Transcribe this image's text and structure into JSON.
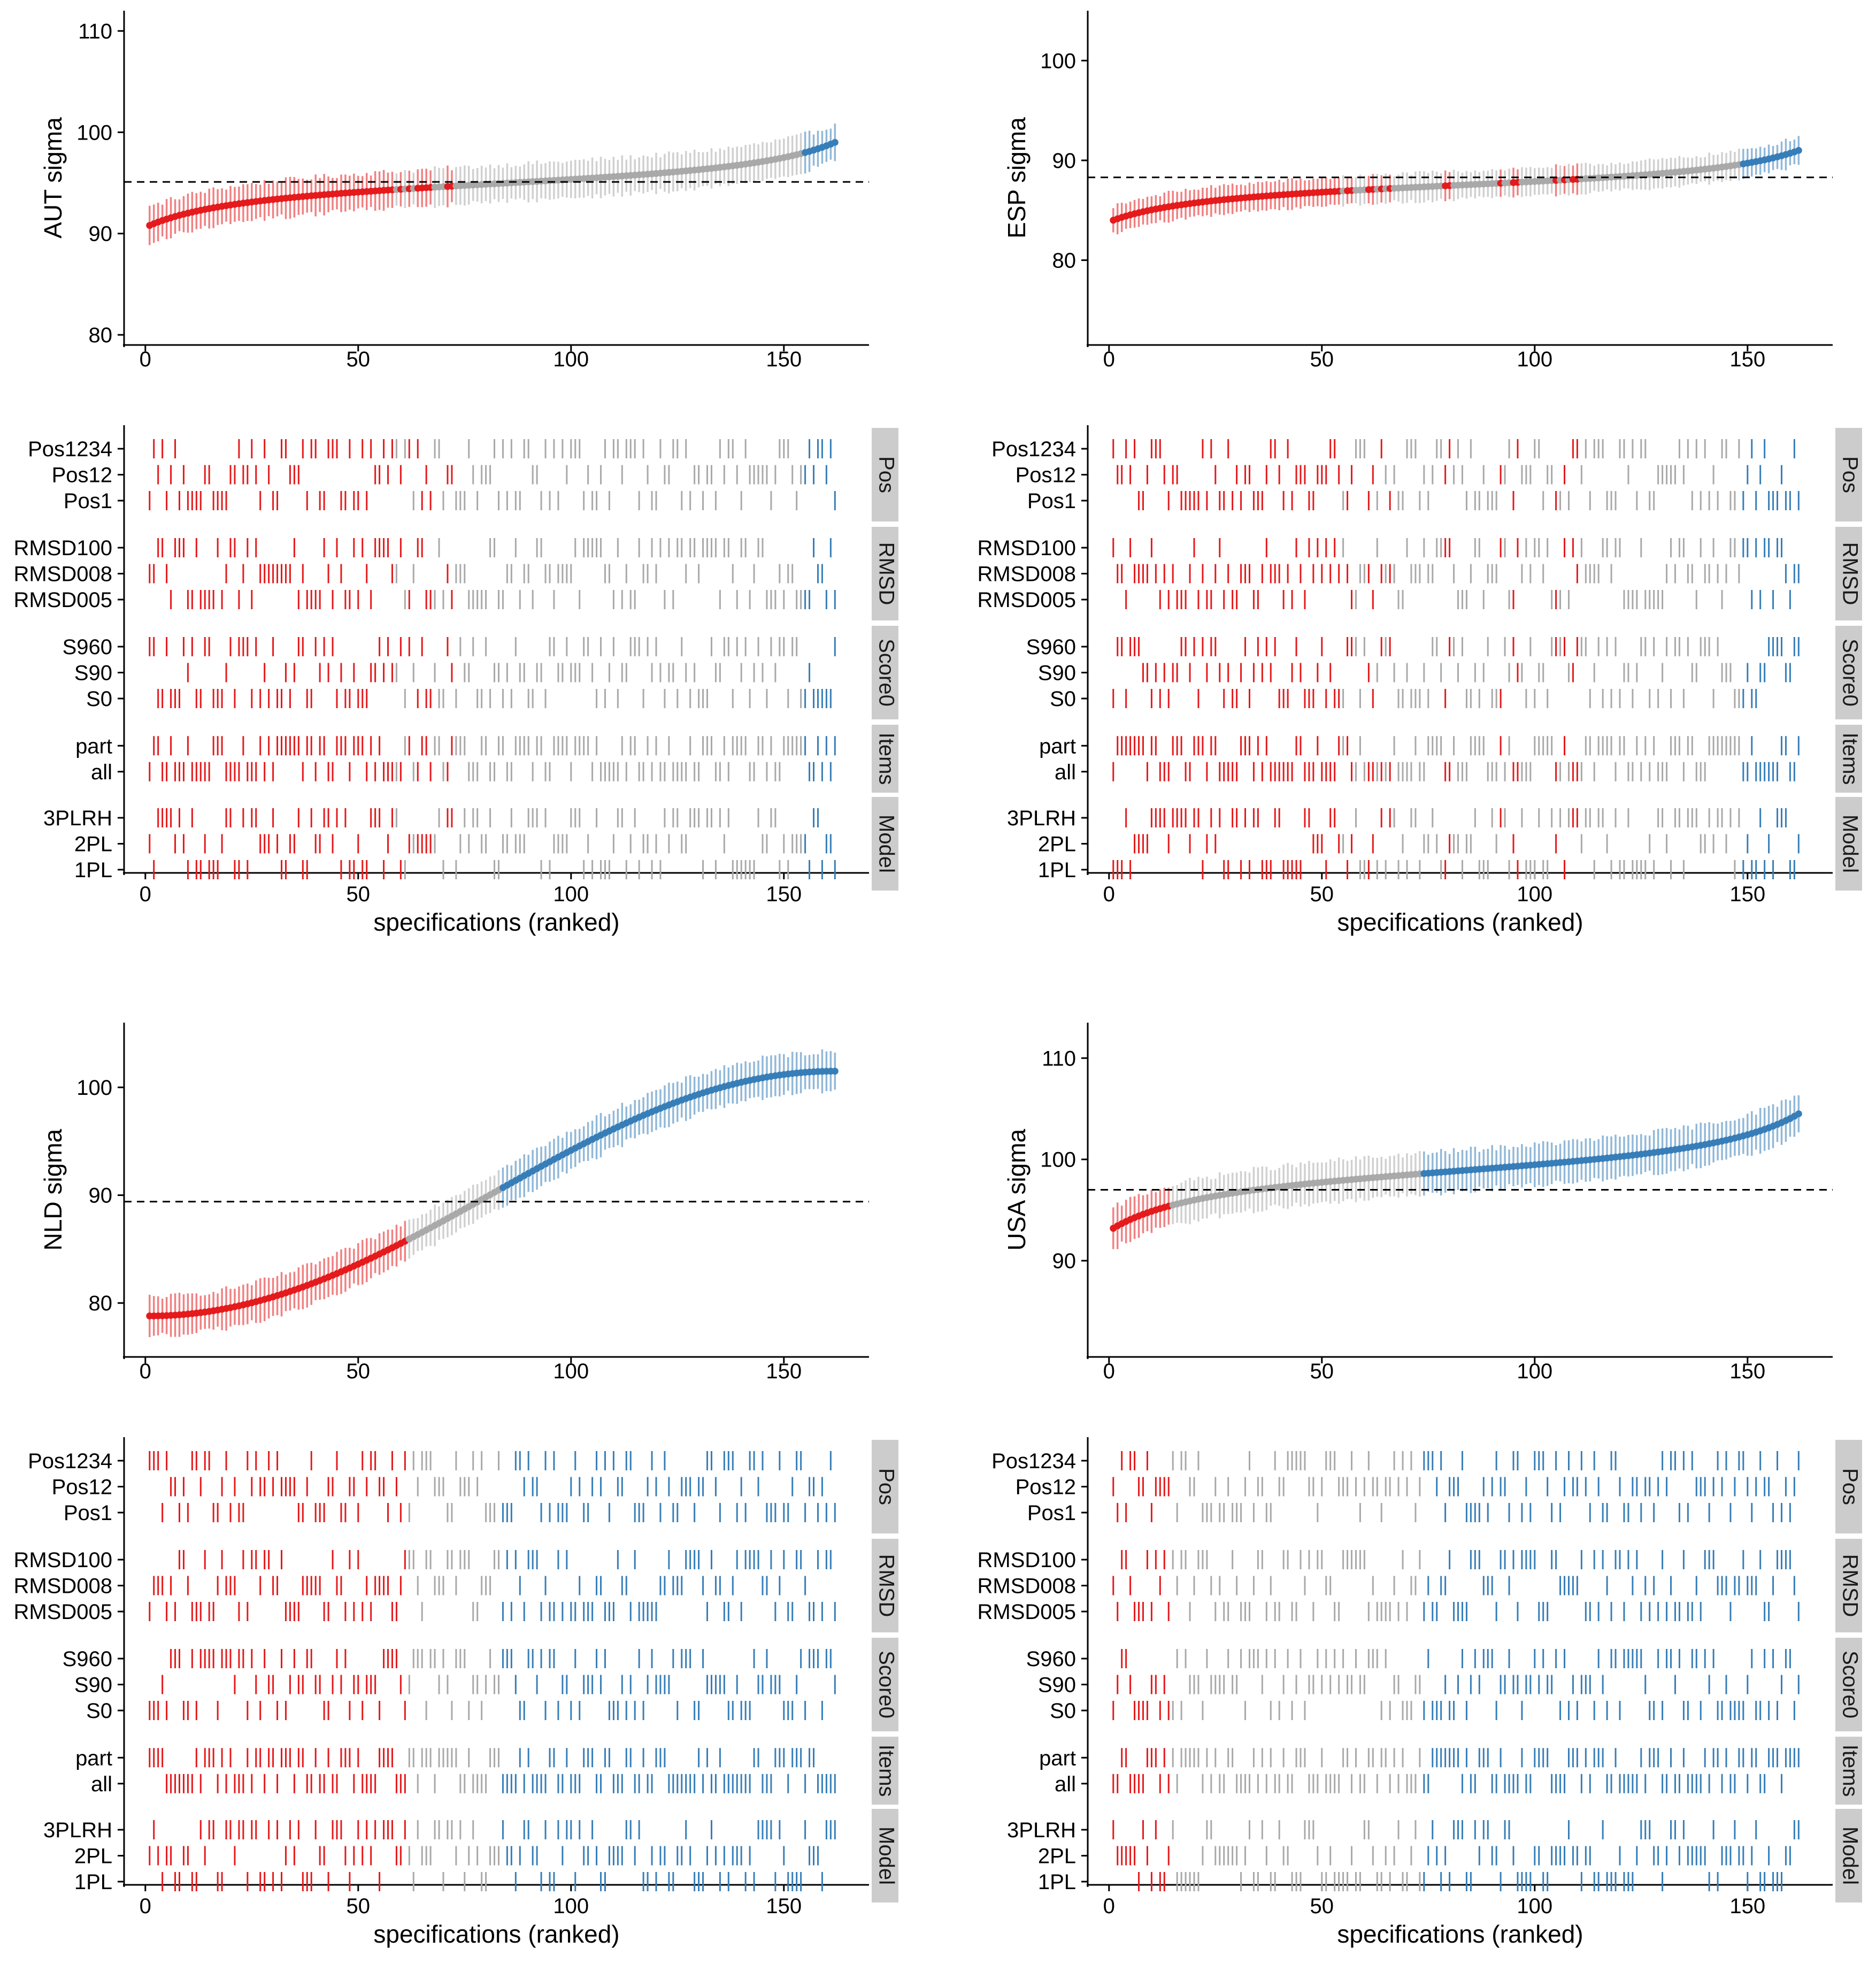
{
  "figure": {
    "colors": {
      "below": "#e41a1c",
      "neutral": "#a9a9a9",
      "above": "#377eb8"
    }
  },
  "chart_data": [
    {
      "type": "scatter",
      "country": "AUT",
      "ylabel": "AUT sigma",
      "xlabel": "specifications (ranked)",
      "n": 162,
      "xlim": [
        -5,
        170
      ],
      "xticks": [
        "0",
        "50",
        "100",
        "150"
      ],
      "ylim": [
        79,
        112
      ],
      "yticks": [
        "80",
        "90",
        "100",
        "110"
      ],
      "reference_line": 95.1,
      "est_start": 90.8,
      "est_end": 99.0,
      "ci_halfwidth": 1.8,
      "last_red": 72,
      "first_blue": 155,
      "scatter_lo": 59,
      "scatter_hi": 72,
      "factors": [
        {
          "name": "Pos",
          "levels": [
            "Pos1234",
            "Pos12",
            "Pos1"
          ]
        },
        {
          "name": "RMSD",
          "levels": [
            "RMSD100",
            "RMSD008",
            "RMSD005"
          ]
        },
        {
          "name": "Score0",
          "levels": [
            "S960",
            "S90",
            "S0"
          ]
        },
        {
          "name": "Items",
          "levels": [
            "part",
            "all"
          ]
        },
        {
          "name": "Model",
          "levels": [
            "3PLRH",
            "2PL",
            "1PL"
          ]
        }
      ]
    },
    {
      "type": "scatter",
      "country": "ESP",
      "ylabel": "ESP sigma",
      "xlabel": "specifications (ranked)",
      "n": 162,
      "xlim": [
        -5,
        170
      ],
      "xticks": [
        "0",
        "50",
        "100",
        "150"
      ],
      "ylim": [
        71.5,
        105
      ],
      "yticks": [
        "80",
        "90",
        "100"
      ],
      "reference_line": 88.3,
      "est_start": 84.0,
      "est_end": 91.0,
      "ci_halfwidth": 1.4,
      "last_red": 110,
      "first_blue": 149,
      "scatter_lo": 55,
      "scatter_hi": 110,
      "factors": [
        {
          "name": "Pos",
          "levels": [
            "Pos1234",
            "Pos12",
            "Pos1"
          ]
        },
        {
          "name": "RMSD",
          "levels": [
            "RMSD100",
            "RMSD008",
            "RMSD005"
          ]
        },
        {
          "name": "Score0",
          "levels": [
            "S960",
            "S90",
            "S0"
          ]
        },
        {
          "name": "Items",
          "levels": [
            "part",
            "all"
          ]
        },
        {
          "name": "Model",
          "levels": [
            "3PLRH",
            "2PL",
            "1PL"
          ]
        }
      ]
    },
    {
      "type": "scatter",
      "country": "NLD",
      "ylabel": "NLD sigma",
      "xlabel": "specifications (ranked)",
      "n": 162,
      "xlim": [
        -5,
        170
      ],
      "xticks": [
        "0",
        "50",
        "100",
        "150"
      ],
      "ylim": [
        75,
        106
      ],
      "yticks": [
        "80",
        "90",
        "100"
      ],
      "reference_line": 89.4,
      "est_start": 78.8,
      "est_end": 101.5,
      "ci_halfwidth": 1.8,
      "last_red": 61,
      "first_blue": 84,
      "scatter_lo": 61,
      "scatter_hi": 61,
      "factors": [
        {
          "name": "Pos",
          "levels": [
            "Pos1234",
            "Pos12",
            "Pos1"
          ]
        },
        {
          "name": "RMSD",
          "levels": [
            "RMSD100",
            "RMSD008",
            "RMSD005"
          ]
        },
        {
          "name": "Score0",
          "levels": [
            "S960",
            "S90",
            "S0"
          ]
        },
        {
          "name": "Items",
          "levels": [
            "part",
            "all"
          ]
        },
        {
          "name": "Model",
          "levels": [
            "3PLRH",
            "2PL",
            "1PL"
          ]
        }
      ]
    },
    {
      "type": "scatter",
      "country": "USA",
      "ylabel": "USA sigma",
      "xlabel": "specifications (ranked)",
      "n": 162,
      "xlim": [
        -5,
        170
      ],
      "xticks": [
        "0",
        "50",
        "100",
        "150"
      ],
      "ylim": [
        80.5,
        113.5
      ],
      "yticks": [
        "90",
        "100",
        "110"
      ],
      "reference_line": 97.0,
      "est_start": 93.2,
      "est_end": 104.5,
      "ci_halfwidth": 2.0,
      "last_red": 14,
      "first_blue": 74,
      "scatter_lo": 14,
      "scatter_hi": 14,
      "factors": [
        {
          "name": "Pos",
          "levels": [
            "Pos1234",
            "Pos12",
            "Pos1"
          ]
        },
        {
          "name": "RMSD",
          "levels": [
            "RMSD100",
            "RMSD008",
            "RMSD005"
          ]
        },
        {
          "name": "Score0",
          "levels": [
            "S960",
            "S90",
            "S0"
          ]
        },
        {
          "name": "Items",
          "levels": [
            "part",
            "all"
          ]
        },
        {
          "name": "Model",
          "levels": [
            "3PLRH",
            "2PL",
            "1PL"
          ]
        }
      ]
    }
  ]
}
